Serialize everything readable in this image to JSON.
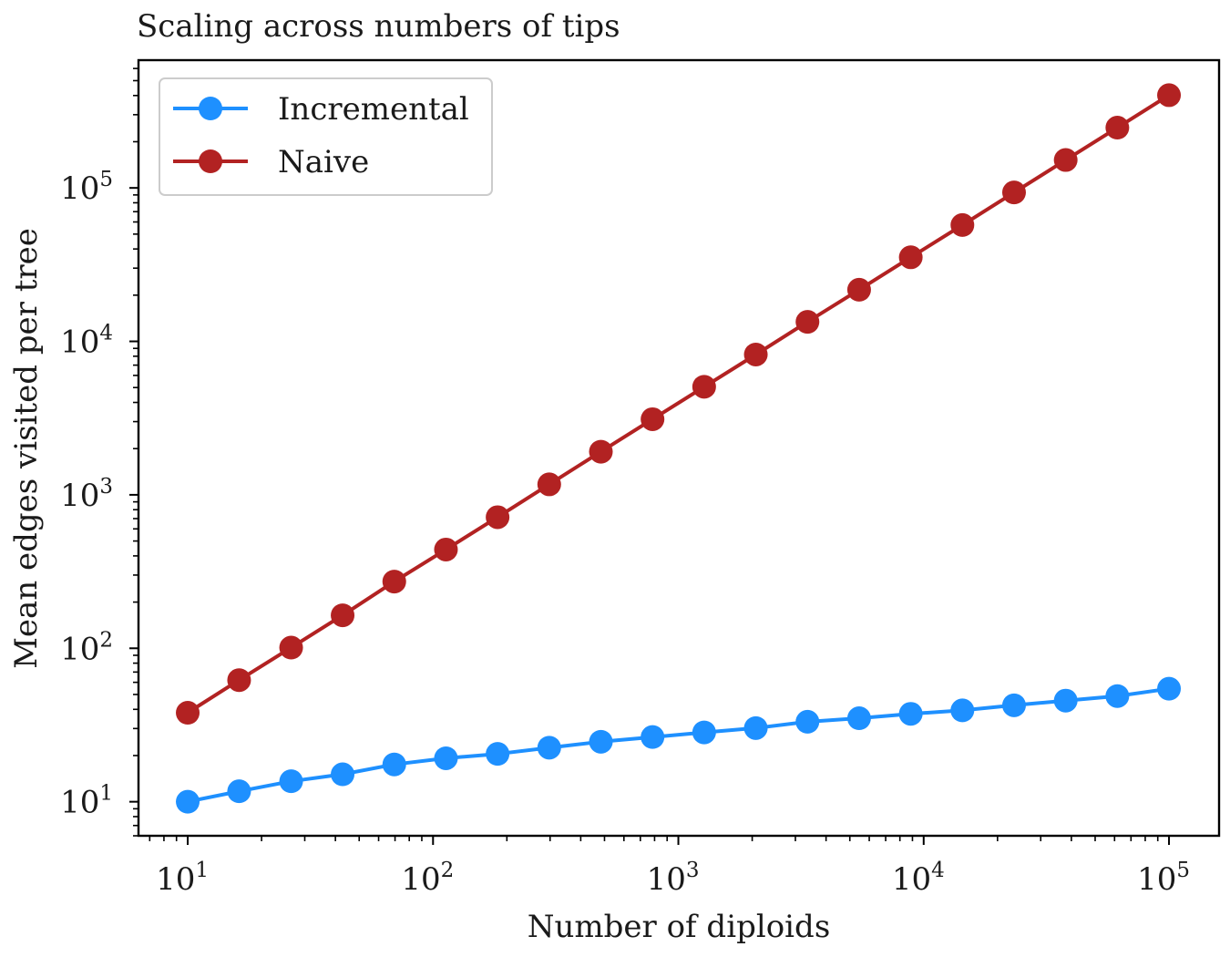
{
  "chart_data": {
    "type": "line",
    "title": "Scaling across numbers of tips",
    "xlabel": "Number of diploids",
    "ylabel": "Mean edges visited per tree",
    "xscale": "log",
    "yscale": "log",
    "xlim": [
      6.3,
      160000
    ],
    "ylim": [
      6.0,
      680000
    ],
    "grid": false,
    "legend_position": "top-left",
    "x_ticks": [
      {
        "base": "10",
        "exp": "1",
        "value": 10
      },
      {
        "base": "10",
        "exp": "2",
        "value": 100
      },
      {
        "base": "10",
        "exp": "3",
        "value": 1000
      },
      {
        "base": "10",
        "exp": "4",
        "value": 10000
      },
      {
        "base": "10",
        "exp": "5",
        "value": 100000
      }
    ],
    "y_ticks": [
      {
        "base": "10",
        "exp": "1",
        "value": 10
      },
      {
        "base": "10",
        "exp": "2",
        "value": 100
      },
      {
        "base": "10",
        "exp": "3",
        "value": 1000
      },
      {
        "base": "10",
        "exp": "4",
        "value": 10000
      },
      {
        "base": "10",
        "exp": "5",
        "value": 100000
      }
    ],
    "x": [
      10,
      16.2,
      26.4,
      42.8,
      69.5,
      112.9,
      183.3,
      297.6,
      483.3,
      784.8,
      1274,
      2069,
      3360,
      5456,
      8859,
      14384,
      23357,
      37927,
      61585,
      100000
    ],
    "series": [
      {
        "name": "Incremental",
        "color": "#1e90ff",
        "values": [
          10,
          11.7,
          13.6,
          15.1,
          17.5,
          19.2,
          20.5,
          22.5,
          24.6,
          26.4,
          28.3,
          30.2,
          33.2,
          35.0,
          37.4,
          39.4,
          42.5,
          45.6,
          48.8,
          54.5
        ]
      },
      {
        "name": "Naive",
        "color": "#b22222",
        "values": [
          38,
          62,
          101,
          164,
          272,
          440,
          715,
          1170,
          1910,
          3110,
          5060,
          8210,
          13400,
          21700,
          35300,
          57300,
          93400,
          152000,
          247000,
          402000
        ]
      }
    ]
  }
}
